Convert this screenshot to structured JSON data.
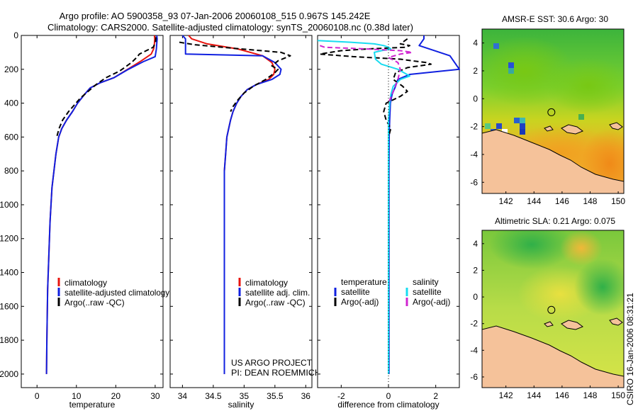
{
  "header": {
    "line1": "Argo profile: AO 5900358_93 07-Jan-2006 20060108_515 0.967S 145.242E",
    "line2": "Climatology: CARS2000. Satellite-adjusted climatology: synTS_20060108.nc (0.38d later)"
  },
  "chart_data": [
    {
      "type": "line",
      "id": "temperature",
      "xlabel": "temperature",
      "ylabel": "",
      "xlim": [
        -4,
        32
      ],
      "ylim": [
        2080,
        0
      ],
      "xticks": [
        0,
        10,
        20,
        30
      ],
      "yticks": [
        0,
        200,
        400,
        600,
        800,
        1000,
        1200,
        1400,
        1600,
        1800,
        2000
      ],
      "legend": [
        "climatology",
        "satellite-adjusted climatology",
        "Argo(..raw -QC)"
      ],
      "series": [
        {
          "name": "climatology",
          "color": "#e8140e",
          "dash": "none",
          "x": [
            29.8,
            29.9,
            29.8,
            29.6,
            29.0,
            26.5,
            23.0,
            19.5,
            16.0,
            13.5,
            12.0,
            10.3,
            9.0,
            7.5,
            6.3,
            5.5,
            4.8,
            4.3,
            3.8,
            3.3,
            3.0,
            2.7,
            2.5,
            2.4
          ],
          "y": [
            0,
            20,
            50,
            80,
            110,
            150,
            200,
            250,
            280,
            310,
            350,
            400,
            450,
            500,
            550,
            600,
            700,
            800,
            900,
            1100,
            1300,
            1500,
            1800,
            2000
          ]
        },
        {
          "name": "satellite-adjusted climatology",
          "color": "#1020e0",
          "dash": "none",
          "x": [
            30.4,
            30.5,
            30.4,
            30.3,
            30.0,
            27.0,
            23.2,
            19.5,
            16.0,
            13.5,
            12.0,
            10.3,
            9.0,
            7.5,
            6.3,
            5.5,
            4.8,
            4.3,
            3.8,
            3.3,
            3.0,
            2.7,
            2.5,
            2.4
          ],
          "y": [
            0,
            20,
            50,
            80,
            125,
            155,
            200,
            250,
            280,
            310,
            350,
            400,
            450,
            500,
            550,
            600,
            700,
            800,
            900,
            1100,
            1300,
            1500,
            1800,
            2000
          ]
        },
        {
          "name": "Argo(..raw -QC)",
          "color": "#000000",
          "dash": "7,4",
          "x": [
            30.2,
            30.1,
            29.5,
            26.0,
            25.3,
            24.0,
            21.0,
            17.5,
            15.0,
            13.0,
            11.0,
            9.5,
            8.0,
            6.5,
            5.6,
            5.0
          ],
          "y": [
            10,
            40,
            70,
            110,
            130,
            160,
            210,
            250,
            290,
            330,
            370,
            410,
            450,
            500,
            550,
            600
          ]
        }
      ]
    },
    {
      "type": "line",
      "id": "salinity",
      "xlabel": "salinity",
      "ylabel": "",
      "xlim": [
        33.8,
        36.1
      ],
      "ylim": [
        2080,
        0
      ],
      "xticks": [
        34,
        34.5,
        35,
        35.5,
        36
      ],
      "yticks": [],
      "legend": [
        "climatology",
        "satellite adj. clim.",
        "Argo(..raw -QC)"
      ],
      "series": [
        {
          "name": "climatology",
          "color": "#e8140e",
          "dash": "none",
          "x": [
            34.1,
            34.15,
            34.4,
            34.9,
            35.3,
            35.45,
            35.5,
            35.48,
            35.4,
            35.2,
            35.05,
            34.95,
            34.88,
            34.82,
            34.78,
            34.75,
            34.72,
            34.7,
            34.68,
            34.68,
            34.68,
            34.68
          ],
          "y": [
            0,
            20,
            50,
            80,
            120,
            160,
            200,
            230,
            260,
            290,
            320,
            360,
            400,
            450,
            500,
            550,
            600,
            700,
            800,
            1000,
            1500,
            2000
          ]
        },
        {
          "name": "satellite adj. clim.",
          "color": "#1020e0",
          "dash": "none",
          "x": [
            34.0,
            34.05,
            34.05,
            34.05,
            35.3,
            35.5,
            35.6,
            35.58,
            35.45,
            35.2,
            35.05,
            34.95,
            34.88,
            34.82,
            34.78,
            34.75,
            34.72,
            34.7,
            34.68,
            34.68,
            34.68,
            34.68
          ],
          "y": [
            0,
            20,
            60,
            110,
            120,
            160,
            200,
            230,
            260,
            290,
            320,
            360,
            400,
            450,
            500,
            550,
            600,
            700,
            800,
            1000,
            1500,
            2000
          ]
        },
        {
          "name": "Argo(..raw -QC)",
          "color": "#000000",
          "dash": "7,4",
          "x": [
            33.95,
            34.2,
            34.8,
            35.6,
            35.75,
            35.55,
            35.45,
            35.55,
            35.5,
            35.35,
            35.15,
            35.0,
            34.9,
            34.82,
            34.78
          ],
          "y": [
            40,
            55,
            75,
            100,
            120,
            150,
            180,
            200,
            220,
            260,
            300,
            340,
            380,
            420,
            450
          ]
        }
      ]
    },
    {
      "type": "line",
      "id": "difference",
      "xlabel": "difference from climatology",
      "ylabel": "",
      "xlim": [
        -3,
        3
      ],
      "ylim": [
        2080,
        0
      ],
      "xticks": [
        -2,
        0,
        2
      ],
      "yticks": [],
      "legend_groups": {
        "temperature": [
          "satellite",
          "Argo(-adj)"
        ],
        "salinity": [
          "satellite",
          "Argo(-adj)"
        ]
      },
      "series": [
        {
          "name": "temperature satellite",
          "color": "#1020e0",
          "dash": "none",
          "x": [
            1.5,
            1.5,
            1.3,
            2.6,
            3.0,
            0.9,
            0.4,
            0.3,
            0.15,
            0.08,
            0.05,
            0.03,
            0.02,
            0.02,
            0.02,
            0.02,
            0.02,
            0.02,
            0.02,
            0.02
          ],
          "y": [
            0,
            20,
            60,
            120,
            200,
            230,
            260,
            300,
            350,
            400,
            500,
            600,
            800,
            1000,
            1200,
            1400,
            1600,
            1800,
            1900,
            2000
          ]
        },
        {
          "name": "temperature Argo(-adj)",
          "color": "#000000",
          "dash": "7,4",
          "x": [
            0.8,
            0.6,
            0.5,
            0.9,
            0.7,
            -0.9,
            -2.0,
            -2.9,
            -1.5,
            0.5,
            1.0,
            1.6,
            1.8,
            0.8,
            0.3,
            0.2,
            0.6,
            0.8,
            0.5,
            -0.1,
            -0.2,
            -0.1,
            0.1,
            0.0
          ],
          "y": [
            20,
            40,
            50,
            60,
            70,
            80,
            90,
            110,
            125,
            140,
            150,
            160,
            170,
            190,
            220,
            260,
            300,
            330,
            360,
            400,
            450,
            500,
            550,
            600
          ]
        },
        {
          "name": "salinity satellite",
          "color": "#18dcf0",
          "dash": "none",
          "x": [
            -3.0,
            -1.6,
            -0.6,
            -0.2,
            0.0,
            0.1,
            -0.3,
            -0.6,
            -0.55,
            -0.3,
            0.4,
            0.9,
            0.5,
            0.2,
            0.1,
            0.05,
            0.0,
            0.0,
            0.0,
            0.0,
            0.0,
            0.0,
            0.0
          ],
          "y": [
            30,
            40,
            50,
            60,
            70,
            80,
            90,
            100,
            140,
            170,
            200,
            240,
            260,
            300,
            350,
            400,
            500,
            700,
            1000,
            1400,
            1700,
            1900,
            2000
          ]
        },
        {
          "name": "salinity Argo(-adj)",
          "color": "#d025d0",
          "dash": "7,4",
          "x": [
            -2.9,
            -2.7,
            -0.9,
            0.5,
            1.0,
            0.5,
            0.0,
            0.4,
            0.5,
            0.4,
            0.2,
            0.0
          ],
          "y": [
            60,
            70,
            80,
            90,
            100,
            110,
            130,
            160,
            200,
            260,
            330,
            400
          ]
        },
        {
          "name": "zero",
          "color": "#000000",
          "dash": "1,3",
          "x": [
            0,
            0
          ],
          "y": [
            0,
            2080
          ]
        }
      ]
    },
    {
      "type": "heatmap",
      "id": "amsre_map",
      "title": "AMSR-E SST: 30.6 Argo: 30",
      "xlim": [
        140.3,
        150.4
      ],
      "ylim": [
        -6.8,
        5.0
      ],
      "xticks": [
        142,
        144,
        146,
        148,
        150
      ],
      "yticks": [
        4,
        2,
        0,
        -2,
        -4,
        -6
      ],
      "marker": {
        "lon": 145.24,
        "lat": -0.97
      }
    },
    {
      "type": "heatmap",
      "id": "altimetric_map",
      "title": "Altimetric SLA: 0.21 Argo: 0.075",
      "xlim": [
        140.3,
        150.4
      ],
      "ylim": [
        -6.8,
        5.0
      ],
      "xticks": [
        142,
        144,
        146,
        148,
        150
      ],
      "yticks": [
        4,
        2,
        0,
        -2,
        -4,
        -6
      ],
      "marker": {
        "lon": 145.24,
        "lat": -0.97
      }
    }
  ],
  "legends": {
    "temperature": [
      "climatology",
      "satellite-adjusted climatology",
      "Argo(..raw -QC)"
    ],
    "salinity": [
      "climatology",
      "satellite adj. clim.",
      "Argo(..raw -QC)"
    ],
    "difference": {
      "temp_header": "temperature",
      "sal_header": "salinity",
      "temp_items": [
        "satellite",
        "Argo(-adj)"
      ],
      "sal_items": [
        "satellite",
        "Argo(-adj)"
      ]
    }
  },
  "project_note": {
    "line1": "US ARGO PROJECT",
    "line2": "PI: DEAN ROEMMICH"
  },
  "footer_stamp": "CSIRO 16-Jan-2006 08:31:21",
  "colors": {
    "red": "#e8140e",
    "blue": "#1020e0",
    "black": "#000000",
    "cyan": "#18dcf0",
    "magenta": "#d025d0",
    "land": "#f5c29a"
  }
}
